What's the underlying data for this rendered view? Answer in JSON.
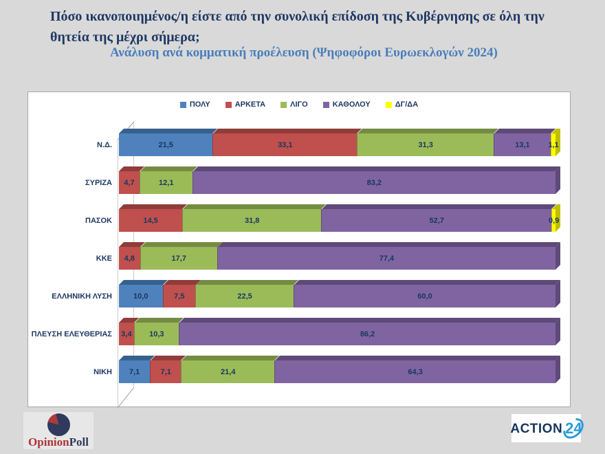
{
  "slide": {
    "background": "#D9D9D9",
    "title": "Πόσο ικανοποιημένος/η είστε από την συνολική επίδοση της Κυβέρνησης σε όλη την θητεία της μέχρι σήμερα;",
    "subtitle": "Ανάλυση ανά κομματική προέλευση (Ψηφοφόροι Ευρωεκλογών 2024)",
    "title_color": "#1F3864",
    "subtitle_color": "#4A7EBB"
  },
  "chart_data": {
    "type": "bar",
    "stacked": true,
    "orientation": "horizontal",
    "style": "3d",
    "grid": false,
    "legend_position": "top-center",
    "xlim": [
      0,
      100
    ],
    "value_format": "one-decimal, comma separator",
    "categories": [
      "Ν.Δ.",
      "ΣΥΡΙΖΑ",
      "ΠΑΣΟΚ",
      "ΚΚΕ",
      "ΕΛΛΗΝΙΚΗ ΛΥΣΗ",
      "ΠΛΕΥΣΗ ΕΛΕΥΘΕΡΙΑΣ",
      "ΝΙΚΗ"
    ],
    "series": [
      {
        "name": "ΠΟΛΥ",
        "color": "#4F81BD",
        "dark": "#36618F",
        "values": [
          21.5,
          0,
          0,
          0,
          10.0,
          0,
          7.1
        ]
      },
      {
        "name": "ΑΡΚΕΤΑ",
        "color": "#C0504D",
        "dark": "#903C3A",
        "values": [
          33.1,
          4.7,
          14.5,
          4.8,
          7.5,
          3.4,
          7.1
        ]
      },
      {
        "name": "ΛΙΓΟ",
        "color": "#9BBB59",
        "dark": "#748C42",
        "values": [
          31.3,
          12.1,
          31.8,
          17.7,
          22.5,
          10.3,
          21.4
        ]
      },
      {
        "name": "ΚΑΘΟΛΟΥ",
        "color": "#8064A2",
        "dark": "#5E4A78",
        "values": [
          13.1,
          83.2,
          52.7,
          77.4,
          60.0,
          86.2,
          64.3
        ]
      },
      {
        "name": "ΔΓ/ΔΑ",
        "color": "#FFFF00",
        "dark": "#BFBF00",
        "values": [
          1.1,
          0,
          0.9,
          0,
          0,
          0,
          0
        ]
      }
    ]
  },
  "footer": {
    "opinionpoll": {
      "word_red": "Opinion",
      "word_navy": "Poll"
    },
    "action24": {
      "word": "ACTION",
      "number": "24"
    }
  }
}
